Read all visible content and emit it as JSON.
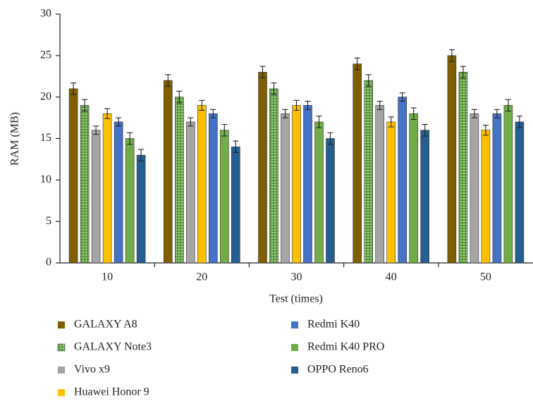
{
  "chart_data": {
    "type": "bar",
    "x_label": "Test (times)",
    "y_label": "RAM (MB)",
    "categories": [
      "10",
      "20",
      "30",
      "40",
      "50"
    ],
    "ylim": [
      0,
      30
    ],
    "yticks": [
      0,
      5,
      10,
      15,
      20,
      25,
      30
    ],
    "grid": false,
    "series": [
      {
        "name": "GALAXY A8",
        "color": "#7f5f00",
        "values": [
          21,
          22,
          23,
          24,
          25
        ],
        "errors": [
          0.7,
          0.7,
          0.7,
          0.7,
          0.7
        ]
      },
      {
        "name": "GALAXY Note3",
        "color": "#5a9a3c",
        "pattern": "dotted",
        "values": [
          19,
          20,
          21,
          22,
          23
        ],
        "errors": [
          0.7,
          0.7,
          0.7,
          0.7,
          0.7
        ]
      },
      {
        "name": "Vivo x9",
        "color": "#a5a5a5",
        "values": [
          16,
          17,
          18,
          19,
          18
        ],
        "errors": [
          0.5,
          0.5,
          0.5,
          0.5,
          0.5
        ]
      },
      {
        "name": "Huawei Honor 9",
        "color": "#ffc000",
        "values": [
          18,
          19,
          19,
          17,
          16
        ],
        "errors": [
          0.6,
          0.6,
          0.6,
          0.6,
          0.6
        ]
      },
      {
        "name": "Redmi K40",
        "color": "#4472c4",
        "values": [
          17,
          18,
          19,
          20,
          18
        ],
        "errors": [
          0.5,
          0.5,
          0.5,
          0.5,
          0.5
        ]
      },
      {
        "name": "Redmi K40 PRO",
        "color": "#70ad47",
        "values": [
          15,
          16,
          17,
          18,
          19
        ],
        "errors": [
          0.7,
          0.7,
          0.7,
          0.7,
          0.7
        ]
      },
      {
        "name": "OPPO Reno6",
        "color": "#255e91",
        "values": [
          13,
          14,
          15,
          16,
          17
        ],
        "errors": [
          0.7,
          0.7,
          0.7,
          0.7,
          0.7
        ]
      }
    ]
  }
}
